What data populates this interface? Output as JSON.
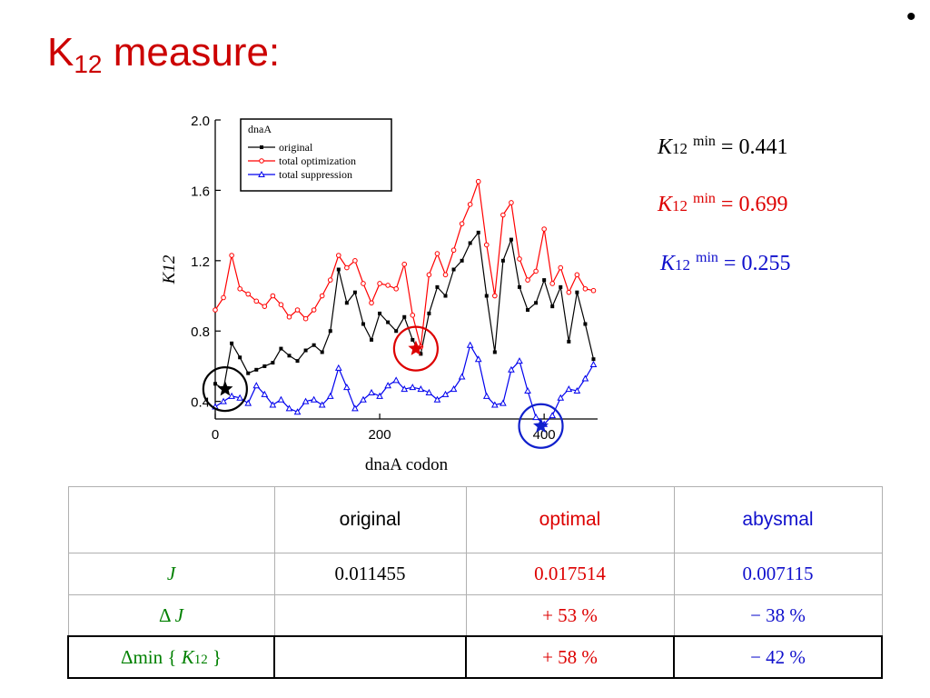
{
  "bullet": "•",
  "title": {
    "main": "K",
    "sub": "12",
    "rest": " measure:"
  },
  "kmin": [
    {
      "k": "K",
      "sub": "12",
      "sup": "min",
      "eq": " = 0.441",
      "color": "#000000"
    },
    {
      "k": "K",
      "sub": "12",
      "sup": "min",
      "eq": " = 0.699",
      "color": "#dd0000"
    },
    {
      "k": "K",
      "sub": "12",
      "sup": "min",
      "eq": " = 0.255",
      "color": "#1010cc"
    }
  ],
  "chart_data": {
    "type": "line",
    "xlabel": "dnaA codon",
    "ylabel": "K12",
    "xlim": [
      0,
      465
    ],
    "ylim": [
      0.3,
      2.0
    ],
    "xticks": [
      "0",
      "200",
      "400"
    ],
    "yticks": [
      "0.4",
      "0.8",
      "1.2",
      "1.6",
      "2.0"
    ],
    "legend": {
      "title": "dnaA",
      "position": "top-left"
    },
    "series": [
      {
        "name": "original",
        "color": "#000000",
        "marker": "square",
        "x": [
          0,
          10,
          20,
          30,
          40,
          50,
          60,
          70,
          80,
          90,
          100,
          110,
          120,
          130,
          140,
          150,
          160,
          170,
          180,
          190,
          200,
          210,
          220,
          230,
          240,
          250,
          260,
          270,
          280,
          290,
          300,
          310,
          320,
          330,
          340,
          350,
          360,
          370,
          380,
          390,
          400,
          410,
          420,
          430,
          440,
          450,
          460
        ],
        "y": [
          0.5,
          0.47,
          0.73,
          0.65,
          0.56,
          0.58,
          0.6,
          0.62,
          0.7,
          0.66,
          0.63,
          0.69,
          0.72,
          0.68,
          0.8,
          1.15,
          0.96,
          1.02,
          0.84,
          0.75,
          0.9,
          0.85,
          0.8,
          0.88,
          0.75,
          0.67,
          0.9,
          1.05,
          1.0,
          1.15,
          1.2,
          1.3,
          1.36,
          1.0,
          0.68,
          1.2,
          1.32,
          1.05,
          0.92,
          0.96,
          1.09,
          0.94,
          1.05,
          0.74,
          1.02,
          0.84,
          0.64
        ]
      },
      {
        "name": "total optimization",
        "color": "#ff0000",
        "marker": "circle",
        "x": [
          0,
          10,
          20,
          30,
          40,
          50,
          60,
          70,
          80,
          90,
          100,
          110,
          120,
          130,
          140,
          150,
          160,
          170,
          180,
          190,
          200,
          210,
          220,
          230,
          240,
          250,
          260,
          270,
          280,
          290,
          300,
          310,
          320,
          330,
          340,
          350,
          360,
          370,
          380,
          390,
          400,
          410,
          420,
          430,
          440,
          450,
          460
        ],
        "y": [
          0.92,
          0.99,
          1.23,
          1.04,
          1.01,
          0.97,
          0.94,
          1.0,
          0.95,
          0.88,
          0.92,
          0.87,
          0.92,
          1.0,
          1.09,
          1.23,
          1.16,
          1.2,
          1.07,
          0.96,
          1.07,
          1.06,
          1.04,
          1.18,
          0.89,
          0.71,
          1.12,
          1.24,
          1.12,
          1.26,
          1.41,
          1.52,
          1.65,
          1.29,
          1.0,
          1.46,
          1.53,
          1.21,
          1.09,
          1.14,
          1.38,
          1.07,
          1.16,
          1.02,
          1.12,
          1.04,
          1.03
        ]
      },
      {
        "name": "total suppression",
        "color": "#0000ee",
        "marker": "triangle",
        "x": [
          0,
          10,
          20,
          30,
          40,
          50,
          60,
          70,
          80,
          90,
          100,
          110,
          120,
          130,
          140,
          150,
          160,
          170,
          180,
          190,
          200,
          210,
          220,
          230,
          240,
          250,
          260,
          270,
          280,
          290,
          300,
          310,
          320,
          330,
          340,
          350,
          360,
          370,
          380,
          390,
          400,
          410,
          420,
          430,
          440,
          450,
          460
        ],
        "y": [
          0.37,
          0.4,
          0.43,
          0.42,
          0.39,
          0.49,
          0.44,
          0.38,
          0.41,
          0.36,
          0.34,
          0.4,
          0.41,
          0.38,
          0.43,
          0.59,
          0.48,
          0.36,
          0.41,
          0.45,
          0.43,
          0.49,
          0.52,
          0.47,
          0.48,
          0.47,
          0.45,
          0.41,
          0.44,
          0.47,
          0.54,
          0.72,
          0.64,
          0.43,
          0.38,
          0.39,
          0.58,
          0.63,
          0.46,
          0.31,
          0.27,
          0.32,
          0.42,
          0.47,
          0.46,
          0.53,
          0.61
        ]
      }
    ],
    "highlights": [
      {
        "series": "original",
        "x": 12,
        "y": 0.47,
        "color": "#000000"
      },
      {
        "series": "total optimization",
        "x": 244,
        "y": 0.7,
        "color": "#dd0000"
      },
      {
        "series": "total suppression",
        "x": 396,
        "y": 0.26,
        "color": "#1020cc"
      }
    ]
  },
  "table": {
    "headers": [
      "",
      "original",
      "optimal",
      "abysmal"
    ],
    "rows": [
      {
        "label": "J",
        "original": "0.011455",
        "optimal": "0.017514",
        "abysmal": "0.007115"
      },
      {
        "label_prefix": "Δ ",
        "label": "J",
        "original": "",
        "optimal": "+ 53 %",
        "abysmal": "− 38 %"
      },
      {
        "label_prefix": "Δmin { ",
        "label": "K",
        "label_sub": "12",
        "label_suffix": " }",
        "original": "",
        "optimal": "+ 58 %",
        "abysmal": "− 42 %"
      }
    ]
  }
}
